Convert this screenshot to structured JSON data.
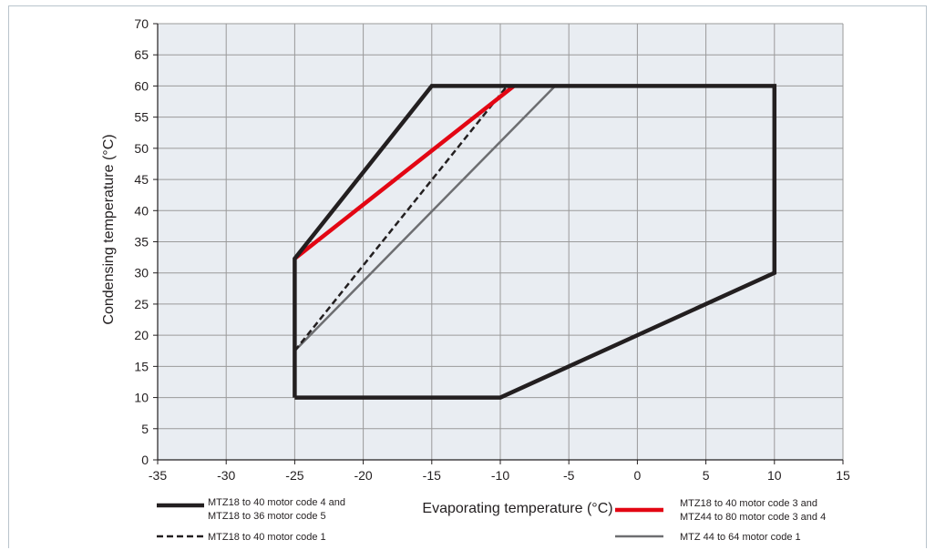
{
  "chart_data": {
    "type": "line",
    "xlabel": "Evaporating temperature (°C)",
    "ylabel": "Condensing temperature (°C)",
    "xlim": [
      -35,
      15
    ],
    "ylim": [
      0,
      70
    ],
    "x_ticks": [
      "-35",
      "-30",
      "-25",
      "-20",
      "-15",
      "-10",
      "-5",
      "0",
      "5",
      "10",
      "15"
    ],
    "y_ticks": [
      "0",
      "5",
      "10",
      "15",
      "20",
      "25",
      "30",
      "35",
      "40",
      "45",
      "50",
      "55",
      "60",
      "65",
      "70"
    ],
    "grid": true,
    "background_color": "#e9edf2",
    "grid_color": "#9a9a9a",
    "series": [
      {
        "key": "envelope",
        "color": "#231f20",
        "style": "solid-thick",
        "points": [
          [
            -25,
            10
          ],
          [
            -10,
            10
          ],
          [
            10,
            30
          ],
          [
            10,
            60
          ],
          [
            -15,
            60
          ],
          [
            -25,
            32.3
          ],
          [
            -25,
            10
          ]
        ]
      },
      {
        "key": "code34",
        "color": "#e30613",
        "style": "solid-thick",
        "points": [
          [
            -25,
            32.3
          ],
          [
            -9,
            60
          ]
        ]
      },
      {
        "key": "code1",
        "color": "#231f20",
        "style": "dashed",
        "points": [
          [
            -25,
            17.5
          ],
          [
            -9.5,
            60
          ]
        ]
      },
      {
        "key": "mtz44",
        "color": "#6d6e71",
        "style": "solid",
        "points": [
          [
            -25,
            17.5
          ],
          [
            -6,
            60
          ]
        ]
      }
    ],
    "legend": {
      "placement": "bottom",
      "items": [
        {
          "series": "envelope",
          "lines": [
            "MTZ18 to 40 motor code 4 and",
            "MTZ18 to 36 motor code 5"
          ]
        },
        {
          "series": "code1",
          "lines": [
            "MTZ18 to 40 motor code 1"
          ]
        },
        {
          "series": "code34",
          "lines": [
            "MTZ18 to 40 motor code 3 and",
            "MTZ44 to 80 motor code 3 and 4"
          ]
        },
        {
          "series": "mtz44",
          "lines": [
            "MTZ 44 to 64 motor code 1"
          ]
        }
      ]
    }
  }
}
